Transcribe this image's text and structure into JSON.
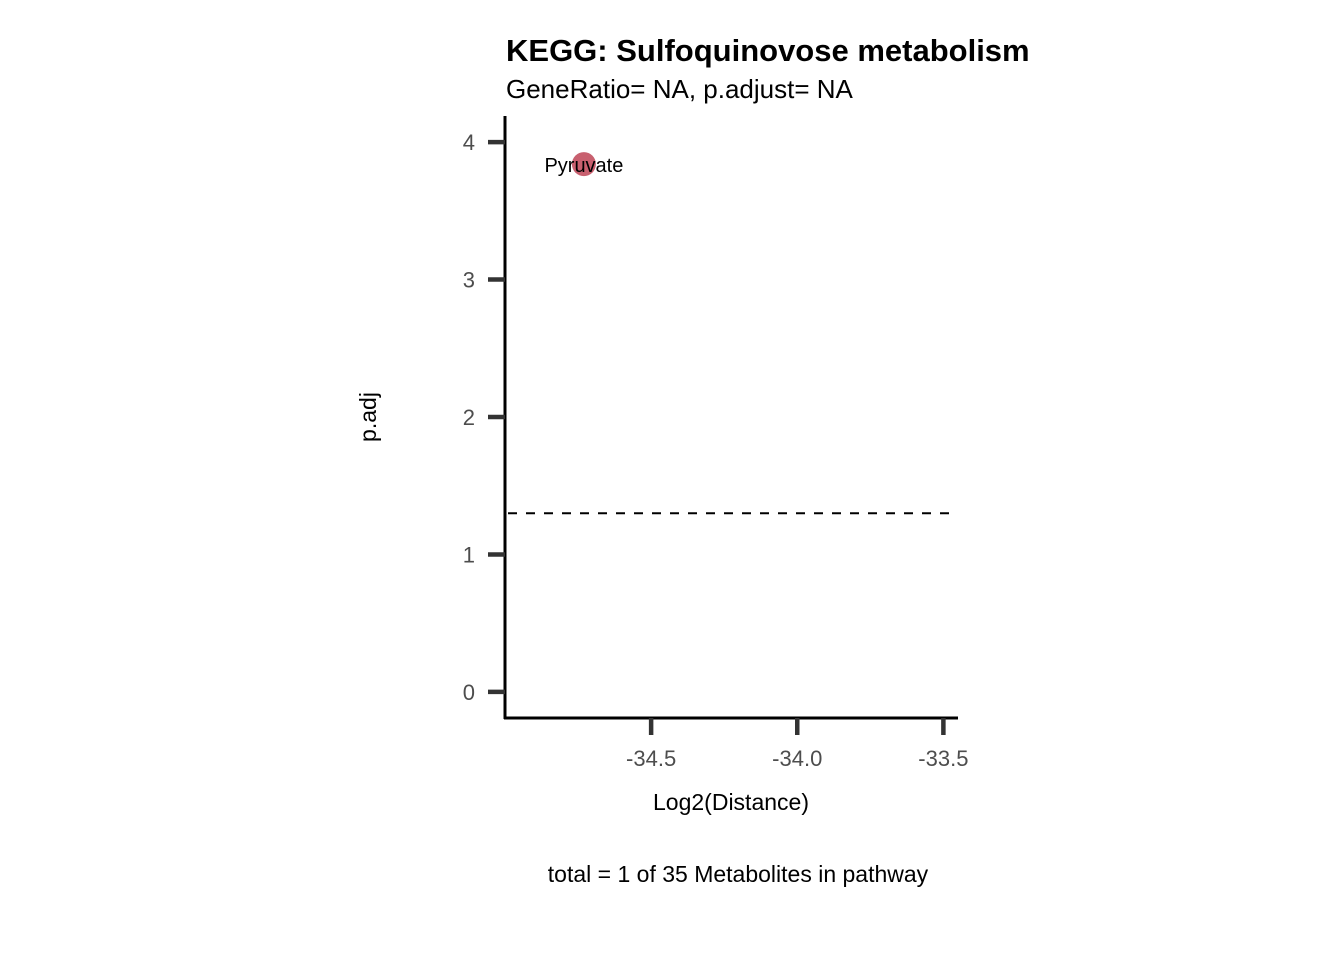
{
  "chart_data": {
    "type": "scatter",
    "title": "KEGG: Sulfoquinovose metabolism",
    "subtitle": "GeneRatio= NA, p.adjust= NA",
    "xlabel": "Log2(Distance)",
    "ylabel": "p.adj",
    "caption": "total = 1 of 35 Metabolites in pathway",
    "xlim": [
      -35.0,
      -33.45
    ],
    "ylim": [
      -0.19,
      4.19
    ],
    "x_ticks": [
      -34.5,
      -34.0,
      -33.5
    ],
    "x_tick_labels": [
      "-34.5",
      "-34.0",
      "-33.5"
    ],
    "y_ticks": [
      0,
      1,
      2,
      3,
      4
    ],
    "y_tick_labels": [
      "0",
      "1",
      "2",
      "3",
      "4"
    ],
    "threshold_line": {
      "y": 1.3,
      "style": "dashed"
    },
    "grid": false,
    "points": [
      {
        "x": -34.73,
        "y": 3.84,
        "label": "Pyruvate",
        "color": "#c8606f"
      }
    ]
  }
}
